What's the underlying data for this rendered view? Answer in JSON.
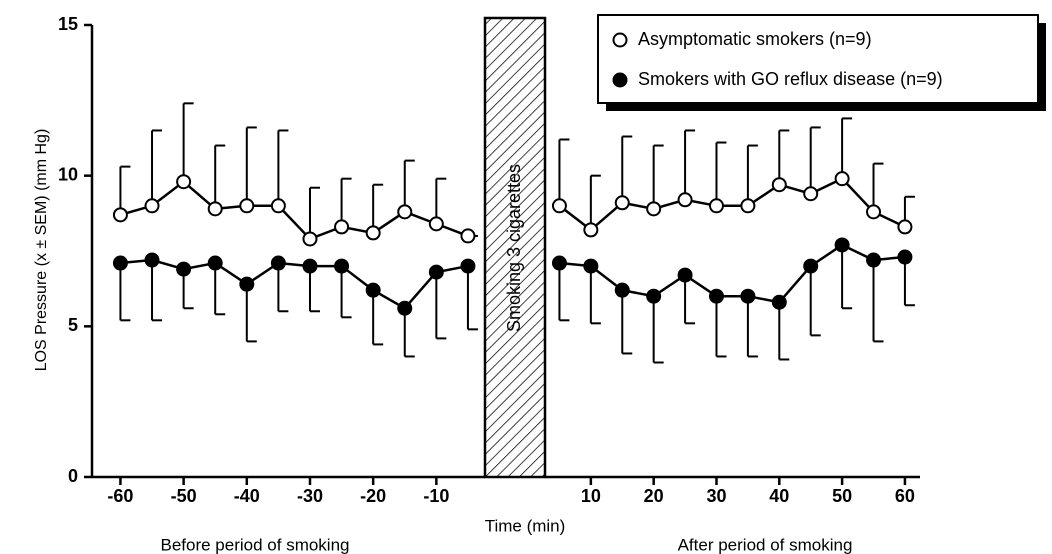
{
  "chart_data": [
    {
      "type": "line",
      "ylabel": "LOS Pressure (x ± SEM) (mm Hg)",
      "xlabel": "Time (min)",
      "annotation": "Smoking 3 cigarettes",
      "subtitle": "Before period of smoking",
      "x": [
        -60,
        -55,
        -50,
        -45,
        -40,
        -35,
        -30,
        -25,
        -20,
        -15,
        -10,
        -5
      ],
      "xlim": [
        -64.5,
        -2.3
      ],
      "xticks": [
        -60,
        -50,
        -40,
        -30,
        -20,
        -10
      ],
      "ylim": [
        0,
        15
      ],
      "yticks": [
        0,
        5,
        10,
        15
      ],
      "legend": "upper right",
      "series": [
        {
          "name": "Asymptomatic smokers (n=9)",
          "color": "#000000",
          "marker_fill": "#ffffff",
          "error_direction": "up",
          "values": [
            8.7,
            9.0,
            9.8,
            8.9,
            9.0,
            9.0,
            7.9,
            8.3,
            8.1,
            8.8,
            8.4,
            8.0
          ],
          "errors": [
            1.6,
            2.5,
            2.6,
            2.1,
            2.6,
            2.5,
            1.7,
            1.6,
            1.6,
            1.7,
            1.5,
            0
          ]
        },
        {
          "name": "Smokers with GO reflux disease (n=9)",
          "color": "#000000",
          "marker_fill": "#000000",
          "error_direction": "down",
          "values": [
            7.1,
            7.2,
            6.9,
            7.1,
            6.4,
            7.1,
            7.0,
            7.0,
            6.2,
            5.6,
            6.8,
            7.0
          ],
          "errors": [
            1.9,
            2.0,
            1.3,
            1.7,
            1.9,
            1.6,
            1.5,
            1.7,
            1.8,
            1.6,
            2.2,
            2.1
          ]
        }
      ]
    },
    {
      "type": "line",
      "subtitle": "After period of smoking",
      "x": [
        5,
        10,
        15,
        20,
        25,
        30,
        35,
        40,
        45,
        50,
        55,
        60
      ],
      "xlim": [
        2.7,
        62.4
      ],
      "xticks": [
        10,
        20,
        30,
        40,
        50,
        60
      ],
      "ylim": [
        0,
        15
      ],
      "series": [
        {
          "color": "#000000",
          "marker_fill": "#ffffff",
          "error_direction": "up",
          "values": [
            9.0,
            8.2,
            9.1,
            8.9,
            9.2,
            9.0,
            9.0,
            9.7,
            9.4,
            9.9,
            8.8,
            8.3
          ],
          "errors": [
            2.2,
            1.8,
            2.2,
            2.1,
            2.3,
            2.1,
            2.0,
            1.8,
            2.2,
            2.0,
            1.6,
            1.0
          ]
        },
        {
          "color": "#000000",
          "marker_fill": "#000000",
          "error_direction": "down",
          "values": [
            7.1,
            7.0,
            6.2,
            6.0,
            6.7,
            6.0,
            6.0,
            5.8,
            7.0,
            7.7,
            7.2,
            7.3
          ],
          "errors": [
            1.9,
            1.9,
            2.1,
            2.2,
            1.6,
            2.0,
            2.0,
            1.9,
            2.3,
            2.1,
            2.7,
            1.6
          ]
        }
      ]
    }
  ]
}
